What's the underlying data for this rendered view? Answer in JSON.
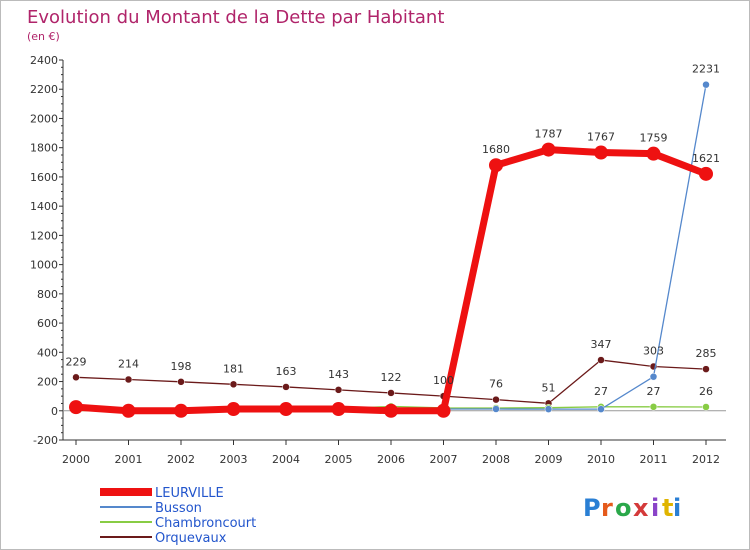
{
  "chart_data": {
    "type": "line",
    "title": "Evolution du Montant de la Dette par Habitant",
    "subtitle": "(en €)",
    "xlabel": "",
    "ylabel": "",
    "categories": [
      "2000",
      "2001",
      "2002",
      "2003",
      "2004",
      "2005",
      "2006",
      "2007",
      "2008",
      "2009",
      "2010",
      "2011",
      "2012"
    ],
    "ylim": [
      -200,
      2400
    ],
    "yticks": [
      -200,
      0,
      200,
      400,
      600,
      800,
      1000,
      1200,
      1400,
      1600,
      1800,
      2000,
      2200,
      2400
    ],
    "grid": false,
    "legend_position": "bottom-left",
    "series": [
      {
        "name": "LEURVILLE",
        "color": "#ee1111",
        "values": [
          25,
          0,
          0,
          12,
          12,
          12,
          0,
          0,
          1680,
          1787,
          1767,
          1759,
          1621
        ],
        "labels_shown": [
          false,
          false,
          false,
          false,
          false,
          false,
          false,
          false,
          true,
          true,
          true,
          true,
          true
        ]
      },
      {
        "name": "Busson",
        "color": "#5588cc",
        "values": [
          12,
          2,
          2,
          12,
          12,
          12,
          12,
          12,
          12,
          11,
          11,
          233,
          2231
        ],
        "labels_shown": [
          false,
          false,
          false,
          false,
          false,
          false,
          false,
          false,
          false,
          false,
          false,
          false,
          true
        ]
      },
      {
        "name": "Chambroncourt",
        "color": "#88cc44",
        "values": [
          2,
          0,
          12,
          12,
          12,
          12,
          30,
          20,
          19,
          21,
          27,
          27,
          26
        ],
        "labels_shown": [
          false,
          false,
          false,
          false,
          false,
          false,
          false,
          false,
          false,
          false,
          true,
          true,
          true
        ]
      },
      {
        "name": "Orquevaux",
        "color": "#6b1a1a",
        "values": [
          229,
          214,
          198,
          181,
          163,
          143,
          122,
          100,
          76,
          51,
          347,
          303,
          285
        ],
        "labels_shown": [
          true,
          true,
          true,
          true,
          true,
          true,
          true,
          true,
          true,
          true,
          true,
          true,
          true
        ]
      }
    ]
  },
  "logo": {
    "text": "Proxiti"
  }
}
